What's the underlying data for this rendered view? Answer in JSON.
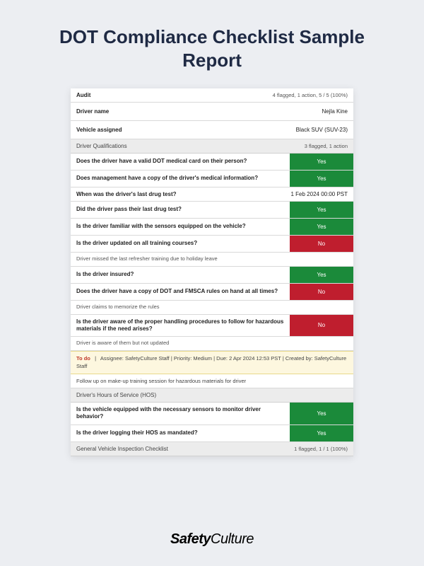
{
  "page_title": "DOT Compliance Checklist Sample Report",
  "brand": {
    "bold": "Safety",
    "light": "Culture"
  },
  "colors": {
    "page_bg": "#eceef2",
    "sheet_bg": "#ffffff",
    "section_bg": "#ececec",
    "yes_bg": "#1b8a3a",
    "no_bg": "#bf1e2e",
    "todo_bg": "#fdf7df",
    "todo_border": "#e8d98b",
    "todo_label": "#c0392b",
    "title_color": "#1f2a44"
  },
  "header": {
    "audit_label": "Audit",
    "audit_summary": "4 flagged, 1 action, 5 / 5 (100%)",
    "driver_name_label": "Driver name",
    "driver_name_value": "Nejla Kine",
    "vehicle_label": "Vehicle assigned",
    "vehicle_value": "Black SUV (SUV-23)"
  },
  "sections": {
    "driver_qual": {
      "title": "Driver Qualifications",
      "summary": "3 flagged, 1 action",
      "q1": {
        "text": "Does the driver have a valid DOT medical card on their person?",
        "answer": "Yes"
      },
      "q2": {
        "text": "Does management have a copy of the driver's medical information?",
        "answer": "Yes"
      },
      "q3": {
        "text": "When was the driver's last drug test?",
        "value": "1 Feb 2024 00:00 PST"
      },
      "q4": {
        "text": "Did the driver pass their last drug test?",
        "answer": "Yes"
      },
      "q5": {
        "text": "Is the driver familiar with the sensors equipped on the vehicle?",
        "answer": "Yes"
      },
      "q6": {
        "text": "Is the driver updated on all training courses?",
        "answer": "No",
        "note": "Driver missed the last refresher training due to holiday leave"
      },
      "q7": {
        "text": "Is the driver insured?",
        "answer": "Yes"
      },
      "q8": {
        "text": "Does the driver have a copy of DOT and FMSCA rules on hand at all times?",
        "answer": "No",
        "note": "Driver claims to memorize the rules"
      },
      "q9": {
        "text": "Is the driver aware of the proper handling procedures to follow for hazardous materials if the need arises?",
        "answer": "No",
        "note": "Driver is aware of them but not updated"
      },
      "todo": {
        "label": "To do",
        "meta": "Assignee: SafetyCulture Staff   |   Priority: Medium   |   Due: 2 Apr 2024 12:53 PST   |   Created by: SafetyCulture Staff",
        "followup": "Follow up on make-up training session for hazardous materials for driver"
      }
    },
    "hos": {
      "title": "Driver's Hours of Service (HOS)",
      "q1": {
        "text": "Is the vehicle equipped with the necessary sensors to monitor driver behavior?",
        "answer": "Yes"
      },
      "q2": {
        "text": "Is the driver logging their HOS as mandated?",
        "answer": "Yes"
      }
    },
    "inspection": {
      "title": "General Vehicle Inspection Checklist",
      "summary": "1 flagged, 1 / 1 (100%)"
    }
  }
}
